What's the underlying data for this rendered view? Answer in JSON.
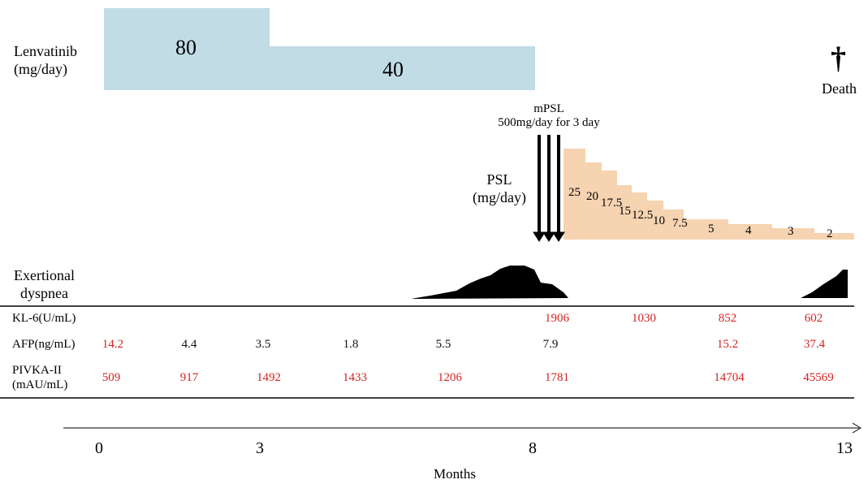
{
  "lenvatinib": {
    "label_line1": "Lenvatinib",
    "label_line2": "(mg/day)",
    "dose_high": "80",
    "dose_low": "40",
    "bar_color": "#c2dce6"
  },
  "death": {
    "symbol": "†",
    "label": "Death"
  },
  "mpsl": {
    "line1": "mPSL",
    "line2": "500mg/day for 3 day"
  },
  "psl": {
    "label_line1": "PSL",
    "label_line2": "(mg/day)",
    "bar_color": "#f6d3b1",
    "doses": [
      "25",
      "20",
      "17.5",
      "15",
      "12.5",
      "10",
      "7.5",
      "5",
      "4",
      "3",
      "2"
    ]
  },
  "dyspnea": {
    "label_line1": "Exertional",
    "label_line2": "dyspnea"
  },
  "labs": {
    "value_color": "#d42222",
    "kl6": {
      "label": "KL-6(U/mL)",
      "values": [
        "1906",
        "1030",
        "852",
        "602"
      ]
    },
    "afp": {
      "label": "AFP(ng/mL)",
      "values": [
        "14.2",
        "4.4",
        "3.5",
        "1.8",
        "5.5",
        "7.9",
        "15.2",
        "37.4"
      ]
    },
    "pivka": {
      "label_line1": "PIVKA-II",
      "label_line2": "(mAU/mL)",
      "values": [
        "509",
        "917",
        "1492",
        "1433",
        "1206",
        "1781",
        "14704",
        "45569"
      ]
    }
  },
  "axis": {
    "ticks": [
      "0",
      "3",
      "8",
      "13"
    ],
    "label": "Months"
  }
}
